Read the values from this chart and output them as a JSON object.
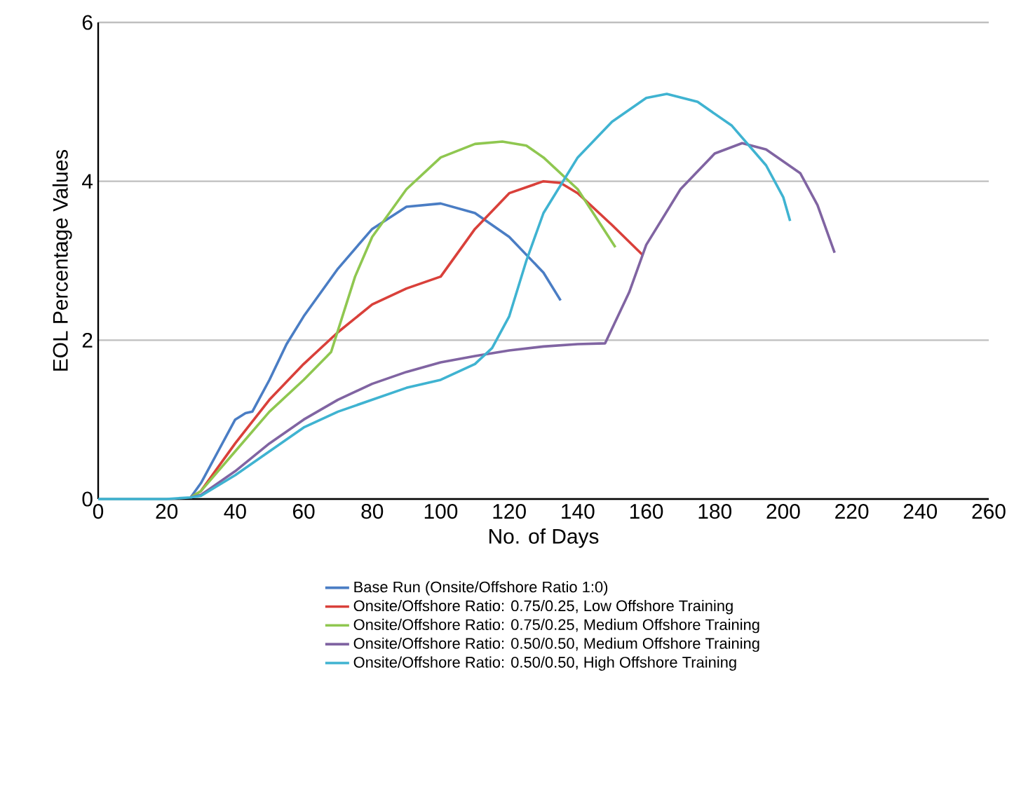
{
  "chart_data": {
    "type": "line",
    "xlabel": "No. of Days",
    "ylabel": "EOL Percentage Values",
    "xlim": [
      0,
      260
    ],
    "ylim": [
      0,
      6
    ],
    "xticks": [
      0,
      20,
      40,
      60,
      80,
      100,
      120,
      140,
      160,
      180,
      200,
      220,
      240,
      260
    ],
    "yticks": [
      0,
      2,
      4,
      6
    ],
    "grid": "y",
    "legend": "bottom",
    "marker": "none",
    "line_style": "solid",
    "series": [
      {
        "name": "Base Run (Onsite/Offshore Ratio 1:0)",
        "color": "#4a7dc4",
        "x": [
          27,
          30,
          35,
          40,
          43,
          45,
          50,
          55,
          60,
          70,
          80,
          90,
          100,
          110,
          120,
          130,
          135
        ],
        "values": [
          0.02,
          0.2,
          0.6,
          1.0,
          1.08,
          1.1,
          1.5,
          1.95,
          2.3,
          2.9,
          3.4,
          3.68,
          3.72,
          3.6,
          3.3,
          2.85,
          2.5
        ]
      },
      {
        "name": "Onsite/Offshore Ratio: 0.75/0.25, Low Offshore Training",
        "color": "#d9403a",
        "x": [
          27,
          30,
          40,
          50,
          60,
          70,
          80,
          90,
          100,
          110,
          120,
          130,
          135,
          140,
          150,
          159
        ],
        "values": [
          0.02,
          0.1,
          0.7,
          1.25,
          1.7,
          2.1,
          2.45,
          2.65,
          2.8,
          3.4,
          3.85,
          4.0,
          3.98,
          3.85,
          3.45,
          3.07
        ]
      },
      {
        "name": "Onsite/Offshore Ratio: 0.75/0.25, Medium Offshore Training",
        "color": "#8fc750",
        "x": [
          27,
          30,
          40,
          50,
          60,
          68,
          75,
          80,
          90,
          100,
          110,
          118,
          125,
          130,
          140,
          151
        ],
        "values": [
          0.02,
          0.1,
          0.6,
          1.1,
          1.5,
          1.85,
          2.8,
          3.3,
          3.9,
          4.3,
          4.47,
          4.5,
          4.45,
          4.3,
          3.9,
          3.17
        ]
      },
      {
        "name": "Onsite/Offshore Ratio: 0.50/0.50, Medium Offshore Training",
        "color": "#8064a2",
        "x": [
          27,
          30,
          40,
          50,
          60,
          70,
          80,
          90,
          100,
          110,
          120,
          130,
          140,
          148,
          155,
          160,
          170,
          180,
          188,
          195,
          205,
          210,
          215
        ],
        "values": [
          0.02,
          0.05,
          0.35,
          0.7,
          1.0,
          1.25,
          1.45,
          1.6,
          1.72,
          1.8,
          1.87,
          1.92,
          1.95,
          1.96,
          2.6,
          3.2,
          3.9,
          4.35,
          4.48,
          4.4,
          4.1,
          3.7,
          3.1
        ]
      },
      {
        "name": "Onsite/Offshore Ratio: 0.50/0.50, High Offshore Training",
        "color": "#3fb3d1",
        "x": [
          0,
          20,
          27,
          30,
          40,
          50,
          60,
          70,
          80,
          90,
          100,
          110,
          115,
          120,
          125,
          130,
          140,
          150,
          160,
          166,
          175,
          185,
          195,
          200,
          202
        ],
        "values": [
          0,
          0,
          0.02,
          0.04,
          0.3,
          0.6,
          0.9,
          1.1,
          1.25,
          1.4,
          1.5,
          1.7,
          1.9,
          2.3,
          3.0,
          3.6,
          4.3,
          4.75,
          5.05,
          5.1,
          5.0,
          4.7,
          4.2,
          3.8,
          3.5
        ]
      }
    ]
  }
}
